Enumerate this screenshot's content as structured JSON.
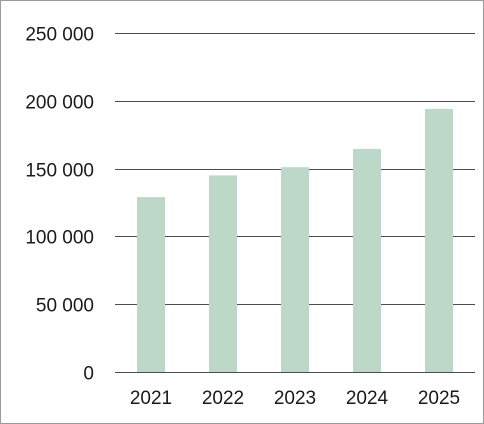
{
  "chart_data": {
    "type": "bar",
    "title": "",
    "xlabel": "",
    "ylabel": "",
    "categories": [
      "2021",
      "2022",
      "2023",
      "2024",
      "2025"
    ],
    "values": [
      129000,
      145000,
      151000,
      164500,
      194000
    ],
    "ylim": [
      0,
      250000
    ],
    "y_ticks": [
      0,
      50000,
      100000,
      150000,
      200000,
      250000
    ],
    "y_tick_labels": [
      "0",
      "50 000",
      "100 000",
      "150 000",
      "200 000",
      "250 000"
    ],
    "grid": true,
    "legend": "none",
    "colors": {
      "bar": "#bdd8c9",
      "gridline": "#4d4d4d",
      "text": "#1a1a1a",
      "frame": "#9a9a9a"
    }
  }
}
